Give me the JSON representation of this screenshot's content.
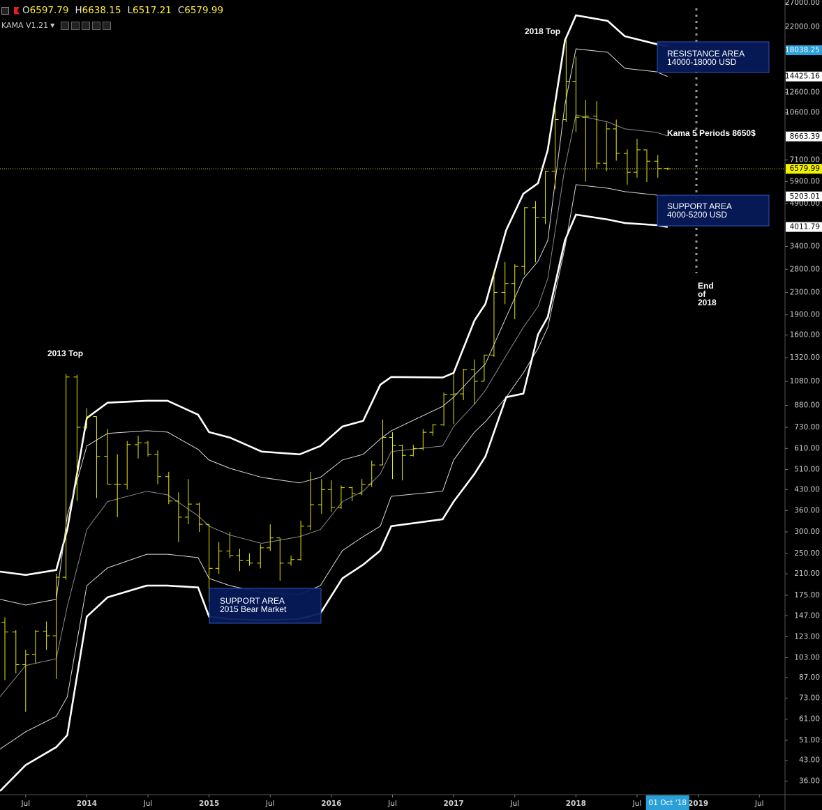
{
  "header": {
    "keys": [
      "O",
      "H",
      "L",
      "C"
    ],
    "indicator": "KAMA V1.21"
  },
  "chart_data": {
    "type": "ohlc",
    "log_scale": true,
    "color": "#e8e800",
    "x": [
      2013.33,
      2013.42,
      2013.5,
      2013.58,
      2013.67,
      2013.75,
      2013.83,
      2013.92,
      2014.0,
      2014.08,
      2014.17,
      2014.25,
      2014.33,
      2014.42,
      2014.5,
      2014.58,
      2014.67,
      2014.75,
      2014.83,
      2014.92,
      2015.0,
      2015.08,
      2015.17,
      2015.25,
      2015.33,
      2015.42,
      2015.5,
      2015.58,
      2015.67,
      2015.75,
      2015.83,
      2015.92,
      2016.0,
      2016.08,
      2016.17,
      2016.25,
      2016.33,
      2016.42,
      2016.5,
      2016.58,
      2016.67,
      2016.75,
      2016.83,
      2016.92,
      2017.0,
      2017.08,
      2017.17,
      2017.25,
      2017.33,
      2017.42,
      2017.5,
      2017.58,
      2017.67,
      2017.75,
      2017.83,
      2017.92,
      2018.0,
      2018.08,
      2018.17,
      2018.25,
      2018.33,
      2018.42,
      2018.5,
      2018.58,
      2018.67,
      2018.75
    ],
    "open": [
      139,
      128,
      97,
      106,
      129,
      124,
      204,
      1120,
      730,
      800,
      570,
      450,
      450,
      630,
      640,
      580,
      480,
      390,
      340,
      380,
      320,
      220,
      255,
      245,
      235,
      230,
      262,
      285,
      230,
      237,
      315,
      378,
      430,
      370,
      437,
      415,
      450,
      530,
      670,
      625,
      575,
      610,
      700,
      745,
      965,
      970,
      1190,
      1080,
      1350,
      2300,
      2480,
      2870,
      4730,
      4340,
      6450,
      10000,
      13860,
      10200,
      10300,
      6900,
      9240,
      7500,
      6390,
      7730,
      7020,
      6597.79
    ],
    "high": [
      145,
      130,
      110,
      130,
      140,
      210,
      1150,
      1140,
      860,
      800,
      720,
      580,
      650,
      680,
      650,
      600,
      500,
      420,
      470,
      385,
      320,
      275,
      300,
      260,
      250,
      270,
      320,
      285,
      245,
      330,
      500,
      470,
      465,
      445,
      440,
      470,
      550,
      780,
      700,
      630,
      630,
      720,
      750,
      980,
      1150,
      1200,
      1300,
      1350,
      2780,
      2980,
      2920,
      4750,
      5000,
      6470,
      11400,
      19700,
      17100,
      11800,
      11700,
      9750,
      10000,
      7760,
      8500,
      7750,
      7400,
      6638.15
    ],
    "low": [
      85,
      90,
      65,
      98,
      110,
      86,
      200,
      390,
      720,
      400,
      450,
      340,
      430,
      560,
      570,
      450,
      380,
      275,
      320,
      300,
      165,
      210,
      240,
      215,
      225,
      220,
      255,
      198,
      225,
      235,
      305,
      350,
      355,
      365,
      390,
      410,
      440,
      530,
      470,
      465,
      570,
      600,
      680,
      740,
      750,
      920,
      890,
      1080,
      1330,
      2080,
      1830,
      2670,
      2970,
      4110,
      5550,
      9800,
      9000,
      5900,
      6600,
      6450,
      7050,
      5750,
      6100,
      5880,
      6100,
      6517.21
    ],
    "close": [
      128,
      97,
      106,
      129,
      124,
      204,
      1120,
      730,
      800,
      570,
      450,
      450,
      630,
      640,
      580,
      480,
      390,
      340,
      380,
      320,
      220,
      255,
      245,
      235,
      230,
      262,
      285,
      230,
      237,
      315,
      378,
      430,
      370,
      437,
      415,
      450,
      530,
      670,
      625,
      575,
      610,
      700,
      745,
      965,
      970,
      1190,
      1080,
      1350,
      2300,
      2480,
      2870,
      4730,
      4340,
      6450,
      10000,
      13860,
      10200,
      10300,
      6900,
      9240,
      7500,
      6390,
      7730,
      7020,
      6597.79,
      6579.99
    ],
    "bands": {
      "x": [
        2013.29,
        2013.5,
        2013.75,
        2013.84,
        2014.0,
        2014.17,
        2014.49,
        2014.66,
        2014.91,
        2015.0,
        2015.17,
        2015.43,
        2015.74,
        2015.91,
        2016.09,
        2016.26,
        2016.4,
        2016.49,
        2016.91,
        2017.0,
        2017.17,
        2017.26,
        2017.43,
        2017.57,
        2017.69,
        2017.77,
        2017.91,
        2018.0,
        2018.26,
        2018.4,
        2018.66,
        2018.75
      ],
      "series": [
        {
          "color": "#ffffff",
          "values": [
            214,
            208,
            217,
            306,
            790,
            900,
            915,
            915,
            813,
            701,
            669,
            594,
            580,
            623,
            735,
            771,
            1049,
            1120,
            1115,
            1160,
            1810,
            2088,
            3910,
            5320,
            5820,
            7730,
            19600,
            24270,
            23150,
            20320,
            19000,
            18700
          ]
        },
        {
          "color": "#d8d8d8",
          "values": [
            169,
            161,
            169,
            344,
            623,
            693,
            709,
            701,
            605,
            553,
            515,
            477,
            455,
            477,
            553,
            580,
            661,
            709,
            873,
            943,
            1140,
            1253,
            1865,
            2584,
            2996,
            3580,
            11360,
            18250,
            17720,
            15470,
            15010,
            14425
          ]
        },
        {
          "color": "#8a8a8a",
          "values": [
            73.8,
            96.3,
            102,
            159,
            306,
            388,
            424,
            411,
            344,
            315,
            292,
            272,
            288,
            306,
            388,
            424,
            491,
            594,
            623,
            735,
            889,
            1001,
            1346,
            1707,
            2038,
            2584,
            6670,
            10400,
            9800,
            9240,
            8970,
            8700
          ]
        },
        {
          "color": "#d8d8d8",
          "values": [
            47.3,
            54.8,
            62.5,
            73.8,
            190,
            221,
            248,
            248,
            241,
            202,
            190,
            179,
            176,
            190,
            256,
            288,
            315,
            406,
            424,
            553,
            701,
            766,
            943,
            1160,
            1427,
            1707,
            3373,
            5750,
            5580,
            5420,
            5260,
            5203
          ]
        },
        {
          "color": "#ffffff",
          "values": [
            33.1,
            41.3,
            48.1,
            53.2,
            146,
            172,
            190,
            190,
            187,
            146,
            143,
            141.5,
            143,
            150,
            202,
            227,
            256,
            315,
            334,
            388,
            491,
            570,
            943,
            972,
            1608,
            1865,
            3580,
            4457,
            4275,
            4150,
            4075,
            4012
          ]
        }
      ]
    },
    "xlim": [
      2013.29,
      2019.71
    ],
    "ylim": [
      32.1,
      27650
    ],
    "xticks": [
      {
        "value": 2013.5,
        "label": "Jul"
      },
      2014,
      {
        "value": 2014.5,
        "label": "Jul"
      },
      2015,
      {
        "value": 2015.5,
        "label": "Jul"
      },
      2016,
      {
        "value": 2016.5,
        "label": "Jul"
      },
      2017,
      {
        "value": 2017.5,
        "label": "Jul"
      },
      2018,
      {
        "value": 2018.5,
        "label": "Jul"
      },
      2019,
      {
        "value": 2019.5,
        "label": "Jul"
      }
    ],
    "cursor": {
      "value": 2018.75,
      "label": "01 Oct '18"
    },
    "yticks": [
      {
        "value": 27000,
        "label": "27000.00"
      },
      {
        "value": 22000,
        "label": "22000.00"
      },
      {
        "value": 12600,
        "label": "12600.00"
      },
      {
        "value": 10600,
        "label": "10600.00"
      },
      {
        "value": 7100,
        "label": "7100.00"
      },
      {
        "value": 5900,
        "label": "5900.00"
      },
      {
        "value": 4900,
        "label": "4900.00"
      },
      {
        "value": 3400,
        "label": "3400.00"
      },
      {
        "value": 2800,
        "label": "2800.00"
      },
      {
        "value": 2300,
        "label": "2300.00"
      },
      {
        "value": 1900,
        "label": "1900.00"
      },
      {
        "value": 1600,
        "label": "1600.00"
      },
      {
        "value": 1320,
        "label": "1320.00"
      },
      {
        "value": 1080,
        "label": "1080.00"
      },
      {
        "value": 880,
        "label": "880.00"
      },
      {
        "value": 730,
        "label": "730.00"
      },
      {
        "value": 610,
        "label": "610.00"
      },
      {
        "value": 510,
        "label": "510.00"
      },
      {
        "value": 430,
        "label": "430.00"
      },
      {
        "value": 360,
        "label": "360.00"
      },
      {
        "value": 300,
        "label": "300.00"
      },
      {
        "value": 250,
        "label": "250.00"
      },
      {
        "value": 210,
        "label": "210.00"
      },
      {
        "value": 175,
        "label": "175.00"
      },
      {
        "value": 147,
        "label": "147.00"
      },
      {
        "value": 123,
        "label": "123.00"
      },
      {
        "value": 103,
        "label": "103.00"
      },
      {
        "value": 87,
        "label": "87.00"
      },
      {
        "value": 73,
        "label": "73.00"
      },
      {
        "value": 61,
        "label": "61.00"
      },
      {
        "value": 51,
        "label": "51.00"
      },
      {
        "value": 43,
        "label": "43.00"
      },
      {
        "value": 36,
        "label": "36.00"
      }
    ],
    "price_labels": [
      {
        "value": 18038.25,
        "label": "18038.25",
        "color": "#2a9fd8",
        "text_color": "#ffffff"
      },
      {
        "value": 14425.16,
        "label": "14425.16",
        "color": "#ffffff",
        "text_color": "#000000"
      },
      {
        "value": 8663.39,
        "label": "8663.39",
        "color": "#ffffff",
        "text_color": "#000000"
      },
      {
        "value": 6579.99,
        "label": "6579.99",
        "color": "#f2f200",
        "text_color": "#000000"
      },
      {
        "value": 5203.01,
        "label": "5203.01",
        "color": "#ffffff",
        "text_color": "#000000"
      },
      {
        "value": 4011.79,
        "label": "4011.79",
        "color": "#ffffff",
        "text_color": "#000000"
      }
    ],
    "annotations": [
      "2013 Top",
      "2018 Top",
      "Kama 5 Periods 8650$"
    ],
    "end_note": [
      "End",
      "of",
      "2018"
    ],
    "areas": [
      [
        "RESISTANCE AREA",
        "14000-18000 USD"
      ],
      [
        "SUPPORT AREA",
        "4000-5200 USD"
      ],
      [
        "SUPPORT AREA",
        "2015 Bear Market"
      ]
    ]
  }
}
